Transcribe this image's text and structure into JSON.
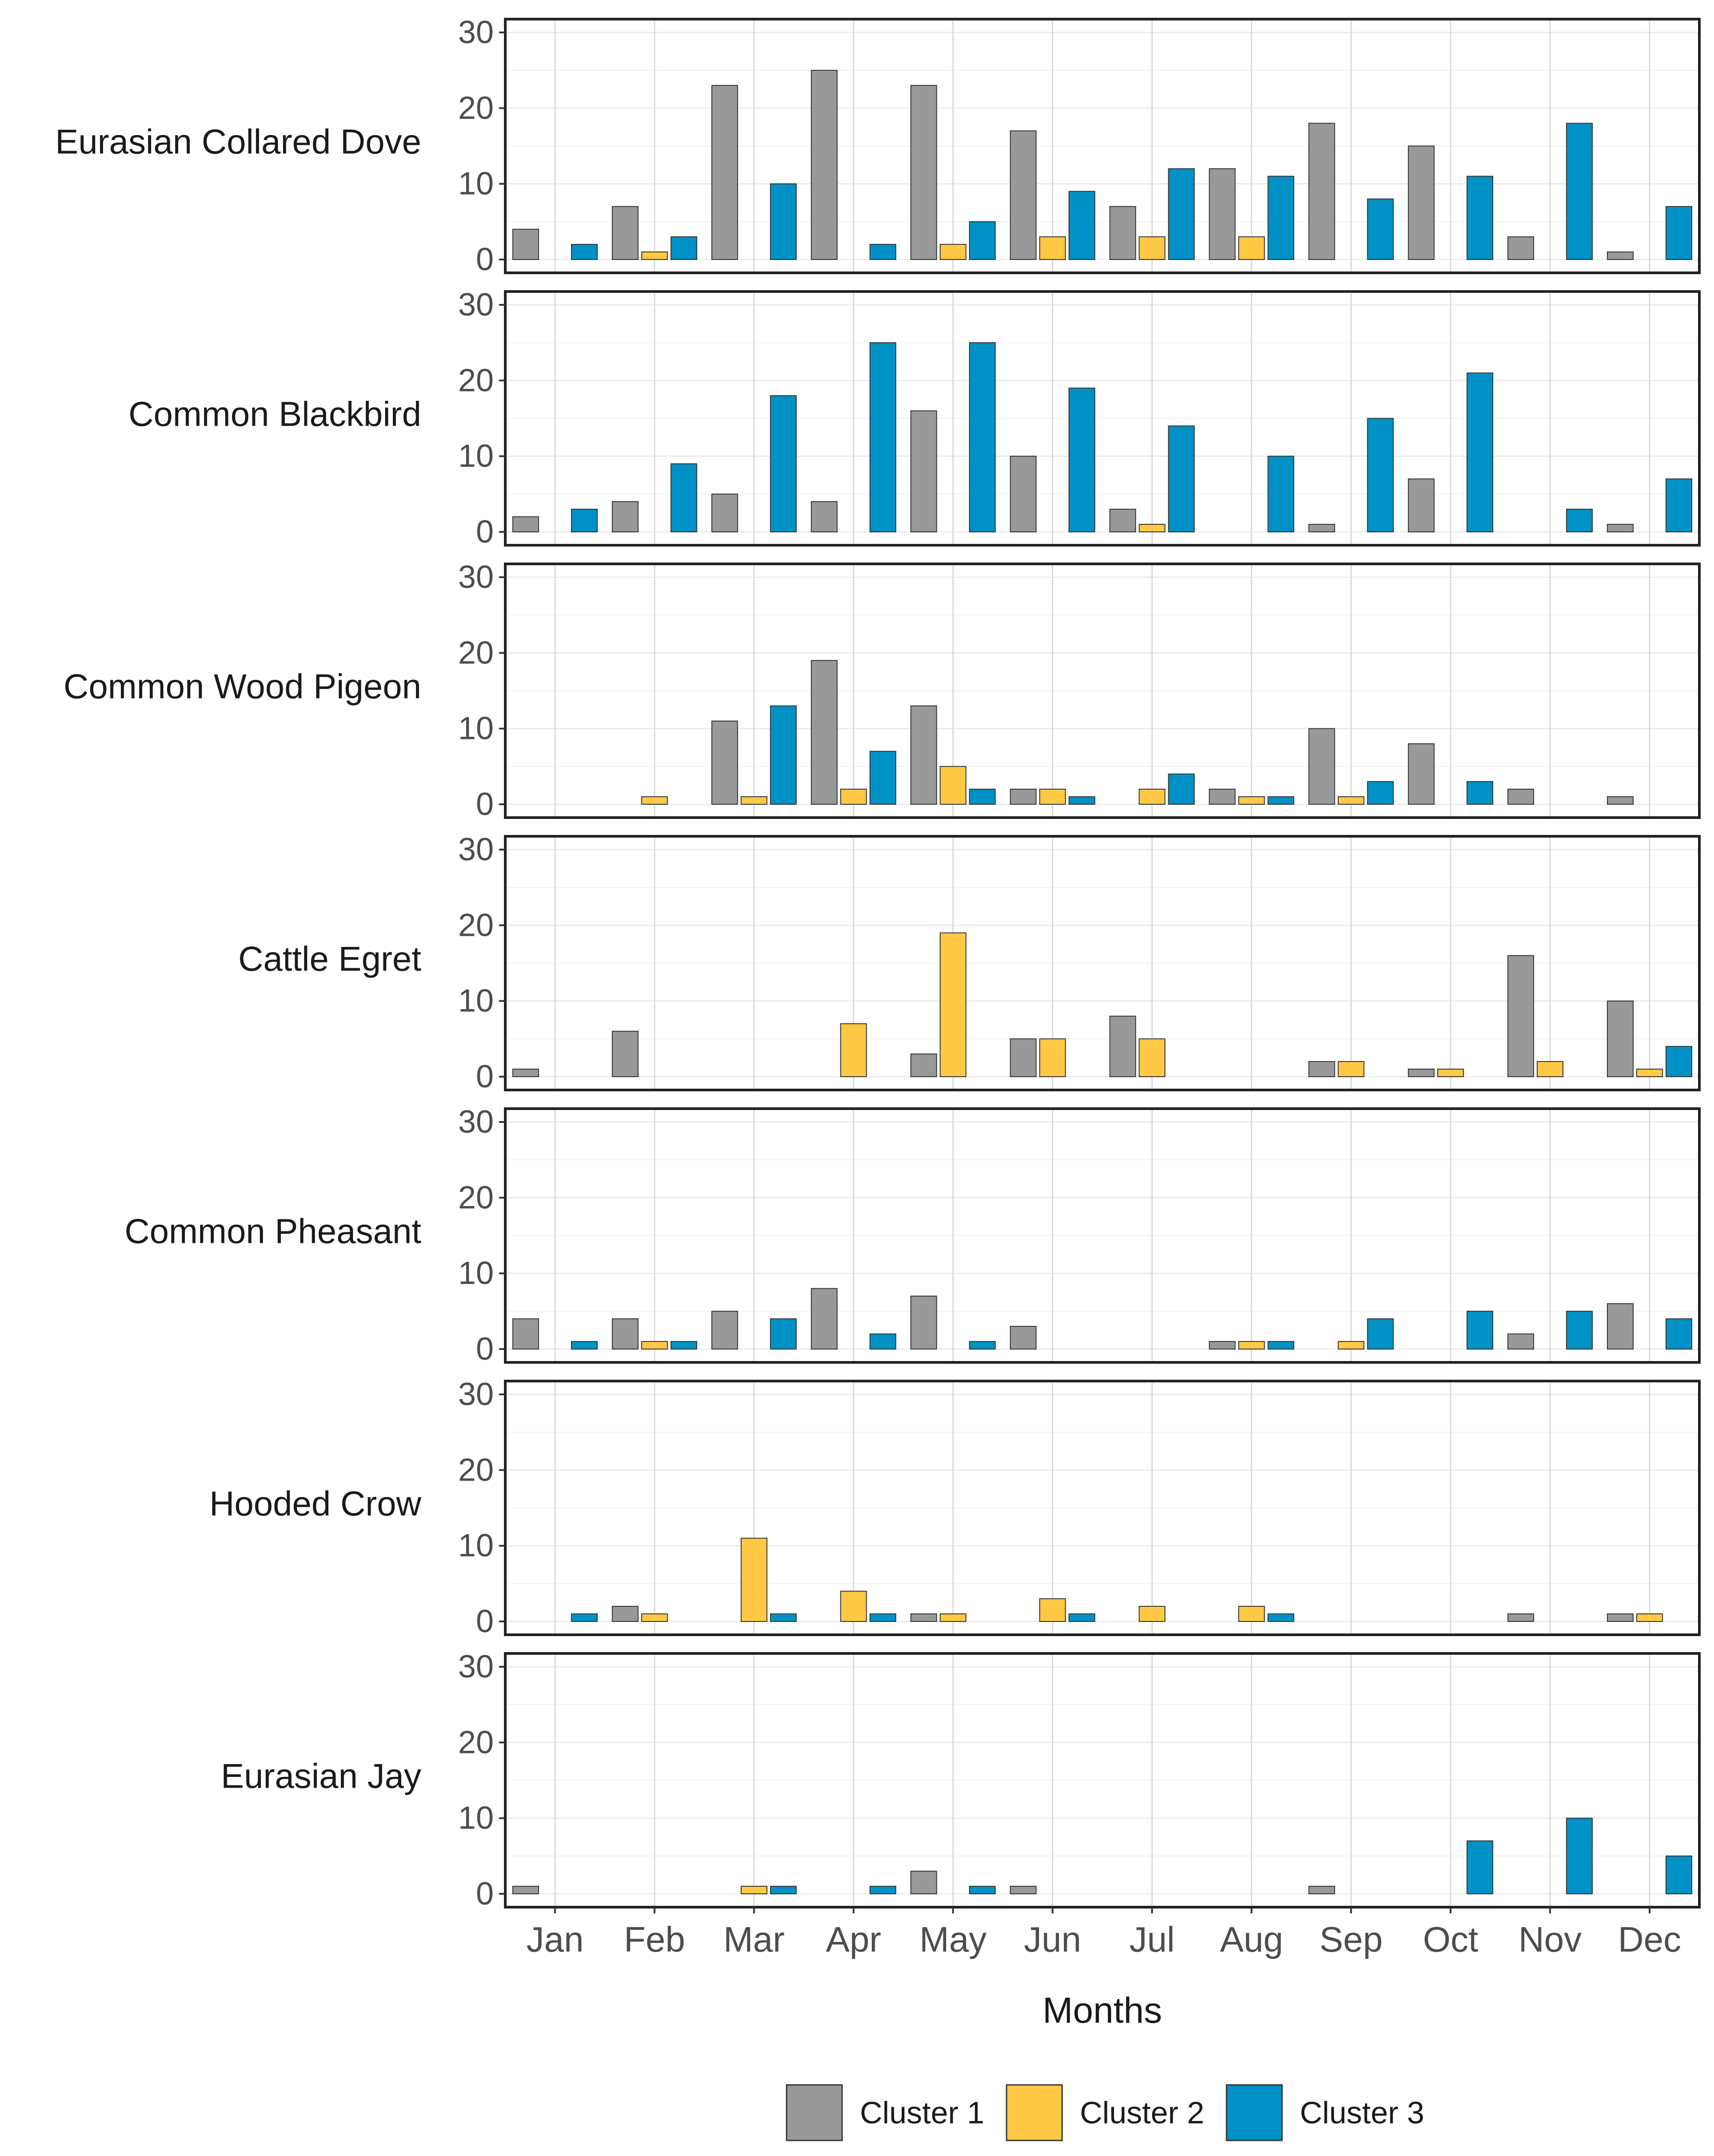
{
  "chart_data": {
    "type": "bar",
    "layout": "faceted-rows",
    "xlabel": "Months",
    "ylabel": "",
    "ylim": [
      0,
      30
    ],
    "yticks": [
      0,
      10,
      20,
      30
    ],
    "grid": true,
    "legend_position": "bottom",
    "categories": [
      "Jan",
      "Feb",
      "Mar",
      "Apr",
      "May",
      "Jun",
      "Jul",
      "Aug",
      "Sep",
      "Oct",
      "Nov",
      "Dec"
    ],
    "clusters": [
      {
        "name": "Cluster 1",
        "color": "#999999"
      },
      {
        "name": "Cluster 2",
        "color": "#FFC845"
      },
      {
        "name": "Cluster 3",
        "color": "#0092C6"
      }
    ],
    "panels": [
      {
        "species": "Eurasian Collared Dove",
        "series": [
          {
            "name": "Cluster 1",
            "values": [
              4,
              7,
              23,
              25,
              23,
              17,
              7,
              12,
              18,
              15,
              3,
              1
            ]
          },
          {
            "name": "Cluster 2",
            "values": [
              0,
              1,
              0,
              0,
              2,
              3,
              3,
              3,
              0,
              0,
              0,
              0
            ]
          },
          {
            "name": "Cluster 3",
            "values": [
              2,
              3,
              10,
              2,
              5,
              9,
              12,
              11,
              8,
              11,
              18,
              7
            ]
          }
        ]
      },
      {
        "species": "Common Blackbird",
        "series": [
          {
            "name": "Cluster 1",
            "values": [
              2,
              4,
              5,
              4,
              16,
              10,
              3,
              0,
              1,
              7,
              0,
              1
            ]
          },
          {
            "name": "Cluster 2",
            "values": [
              0,
              0,
              0,
              0,
              0,
              0,
              1,
              0,
              0,
              0,
              0,
              0
            ]
          },
          {
            "name": "Cluster 3",
            "values": [
              3,
              9,
              18,
              25,
              25,
              19,
              14,
              10,
              15,
              21,
              3,
              7
            ]
          }
        ]
      },
      {
        "species": "Common Wood Pigeon",
        "series": [
          {
            "name": "Cluster 1",
            "values": [
              0,
              0,
              11,
              19,
              13,
              2,
              0,
              2,
              10,
              8,
              2,
              1
            ]
          },
          {
            "name": "Cluster 2",
            "values": [
              0,
              1,
              1,
              2,
              5,
              2,
              2,
              1,
              1,
              0,
              0,
              0
            ]
          },
          {
            "name": "Cluster 3",
            "values": [
              0,
              0,
              13,
              7,
              2,
              1,
              4,
              1,
              3,
              3,
              0,
              0
            ]
          }
        ]
      },
      {
        "species": "Cattle Egret",
        "series": [
          {
            "name": "Cluster 1",
            "values": [
              1,
              6,
              0,
              0,
              3,
              5,
              8,
              0,
              2,
              1,
              16,
              10
            ]
          },
          {
            "name": "Cluster 2",
            "values": [
              0,
              0,
              0,
              7,
              19,
              5,
              5,
              0,
              2,
              1,
              2,
              1
            ]
          },
          {
            "name": "Cluster 3",
            "values": [
              0,
              0,
              0,
              0,
              0,
              0,
              0,
              0,
              0,
              0,
              0,
              4
            ]
          }
        ]
      },
      {
        "species": "Common Pheasant",
        "series": [
          {
            "name": "Cluster 1",
            "values": [
              4,
              4,
              5,
              8,
              7,
              3,
              0,
              1,
              0,
              0,
              2,
              6
            ]
          },
          {
            "name": "Cluster 2",
            "values": [
              0,
              1,
              0,
              0,
              0,
              0,
              0,
              1,
              1,
              0,
              0,
              0
            ]
          },
          {
            "name": "Cluster 3",
            "values": [
              1,
              1,
              4,
              2,
              1,
              0,
              0,
              1,
              4,
              5,
              5,
              4
            ]
          }
        ]
      },
      {
        "species": "Hooded Crow",
        "series": [
          {
            "name": "Cluster 1",
            "values": [
              0,
              2,
              0,
              0,
              1,
              0,
              0,
              0,
              0,
              0,
              1,
              1
            ]
          },
          {
            "name": "Cluster 2",
            "values": [
              0,
              1,
              11,
              4,
              1,
              3,
              2,
              2,
              0,
              0,
              0,
              1
            ]
          },
          {
            "name": "Cluster 3",
            "values": [
              1,
              0,
              1,
              1,
              0,
              1,
              0,
              1,
              0,
              0,
              0,
              0
            ]
          }
        ]
      },
      {
        "species": "Eurasian Jay",
        "series": [
          {
            "name": "Cluster 1",
            "values": [
              1,
              0,
              0,
              0,
              3,
              1,
              0,
              0,
              1,
              0,
              0,
              0
            ]
          },
          {
            "name": "Cluster 2",
            "values": [
              0,
              0,
              1,
              0,
              0,
              0,
              0,
              0,
              0,
              0,
              0,
              0
            ]
          },
          {
            "name": "Cluster 3",
            "values": [
              0,
              0,
              1,
              1,
              1,
              0,
              0,
              0,
              0,
              7,
              10,
              5
            ]
          }
        ]
      }
    ]
  }
}
